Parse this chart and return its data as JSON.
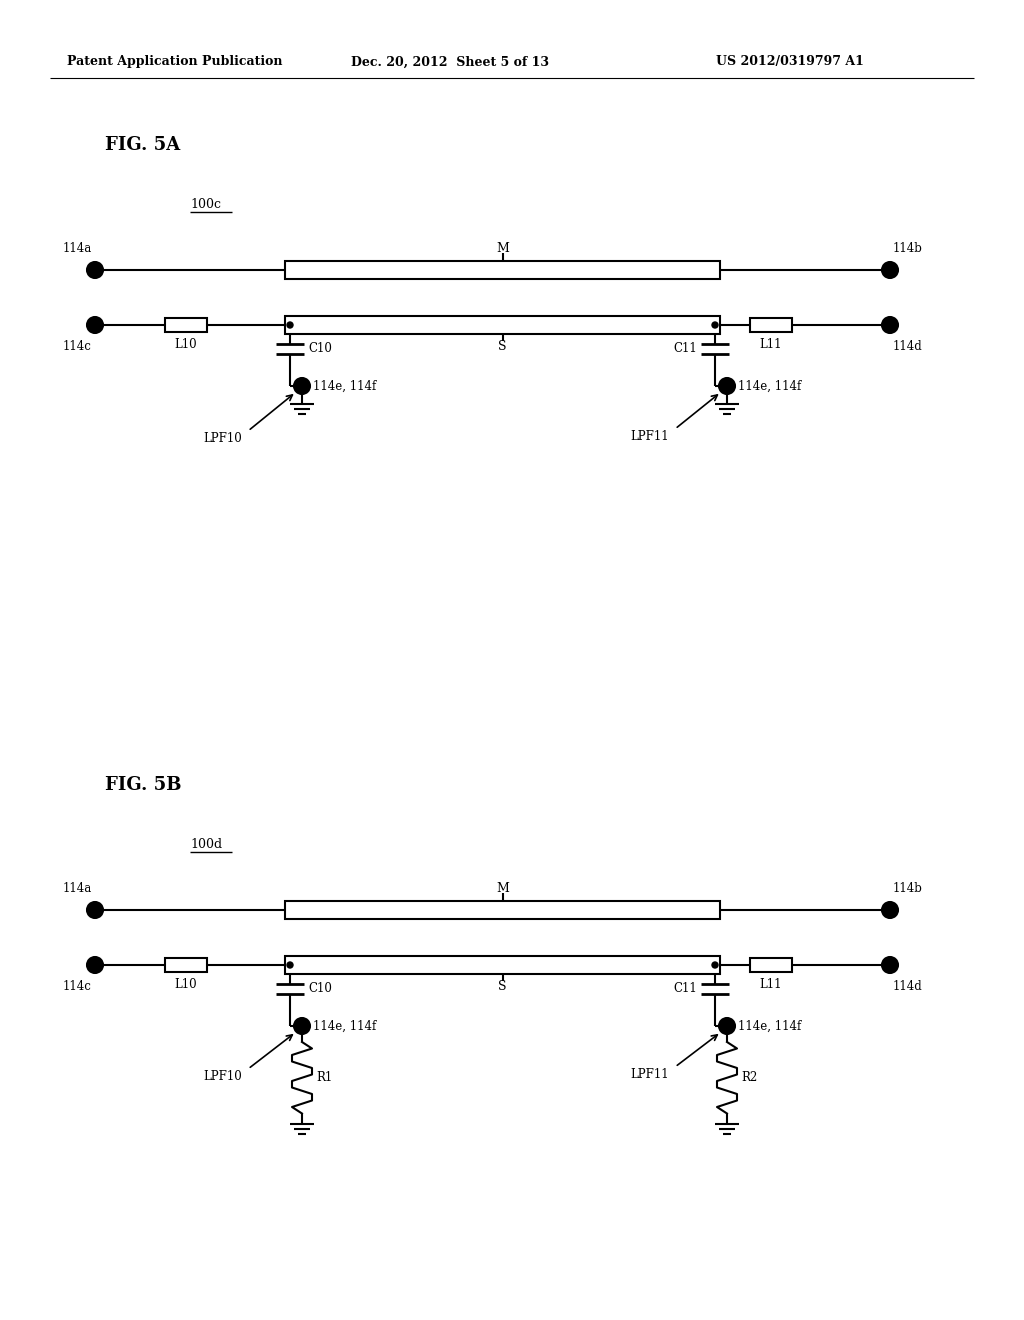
{
  "bg_color": "#ffffff",
  "header_left": "Patent Application Publication",
  "header_mid": "Dec. 20, 2012  Sheet 5 of 13",
  "header_right": "US 2012/0319797 A1",
  "fig5a_label": "FIG. 5A",
  "fig5b_label": "FIG. 5B",
  "fig5a_ref": "100c",
  "fig5b_ref": "100d",
  "line_color": "#000000",
  "line_width": 1.5
}
